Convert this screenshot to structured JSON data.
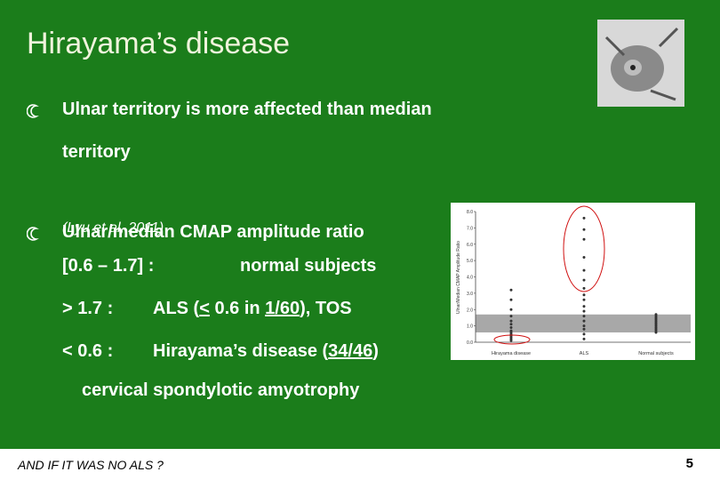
{
  "title": "Hirayama’s disease",
  "bullets": [
    {
      "lines": [
        "Ulnar territory is more affected than median",
        "territory"
      ]
    },
    {
      "lines": [
        "Ulnar/median CMAP amplitude ratio"
      ]
    }
  ],
  "citation": "(Lyu et al, 2011)",
  "items": [
    {
      "key": "[0.6 – 1.7] :",
      "parts": [
        "normal subjects"
      ]
    },
    {
      "key": "> 1.7 :",
      "parts": [
        "ALS (",
        "<",
        " 0.6 in ",
        "1/60",
        "), TOS"
      ]
    },
    {
      "key": "< 0.6 :",
      "parts": [
        "Hirayama’s disease (",
        "34/46",
        ")"
      ]
    }
  ],
  "note": "cervical spondylotic amyotrophy",
  "figure": {
    "y_label": "Ulnar/Median CMAP Amplitude Ratio",
    "yticks": [
      "0.0",
      "1.0",
      "2.0",
      "3.0",
      "4.0",
      "5.0",
      "6.0",
      "7.0",
      "8.0"
    ],
    "categories": [
      "Hirayama disease",
      "ALS",
      "Normal subjects"
    ]
  },
  "footer": {
    "text": "AND IF IT WAS NO ALS ?",
    "page": "5"
  }
}
